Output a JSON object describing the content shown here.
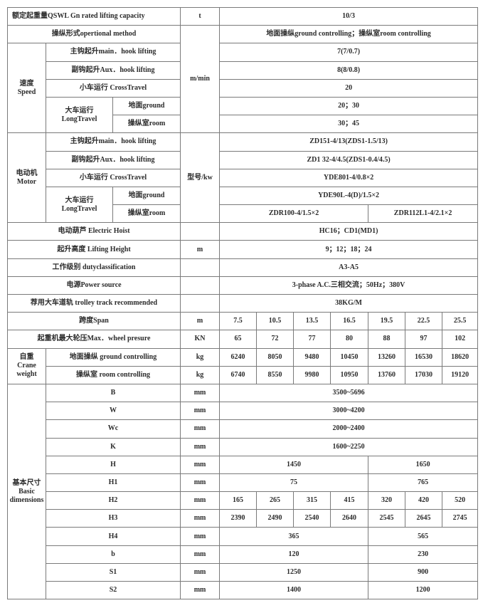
{
  "rated_capacity": {
    "label": "额定起重量QSWL Gn rated lifting capacity",
    "unit": "t",
    "value": "10/3"
  },
  "operation": {
    "label": "操纵形式opertional method",
    "value": "地面操纵ground controlling；操纵室room controlling"
  },
  "speed": {
    "group_cn": "速度",
    "group_en": "Speed",
    "unit": "m/min",
    "main_hook": {
      "label": "主钩起升main．hook lifting",
      "value": "7(7/0.7)"
    },
    "aux_hook": {
      "label": "副钩起升Aux．hook lifting",
      "value": "8(8/0.8)"
    },
    "cross": {
      "label": "小车运行 CrossTravel",
      "value": "20"
    },
    "long_cn": "大车运行",
    "long_en": "LongTravel",
    "ground": {
      "label": "地面ground",
      "value": "20；30"
    },
    "room": {
      "label": "操纵室room",
      "value": "30；45"
    }
  },
  "motor": {
    "group_cn": "电动机",
    "group_en": "Motor",
    "unit": "型号/kw",
    "main_hook": {
      "label": "主钩起升main．hook lifting",
      "value": "ZD151-4/13(ZDS1-1.5/13)"
    },
    "aux_hook": {
      "label": "副钩起升Aux．hook lifting",
      "value": "ZD1 32-4/4.5(ZDS1-0.4/4.5)"
    },
    "cross": {
      "label": "小车运行 CrossTravel",
      "value": "YDE801-4/0.8×2"
    },
    "long_cn": "大车运行",
    "long_en": "LongTravel",
    "ground": {
      "label": "地面ground",
      "value": "YDE90L-4(D)/1.5×2"
    },
    "room": {
      "label": "操纵室room",
      "value_a": "ZDR100-4/1.5×2",
      "value_b": "ZDR112L1-4/2.1×2"
    }
  },
  "hoist": {
    "label": "电动葫芦 Electric Hoist",
    "value": "HC16；CD1(MD1)"
  },
  "lifting_height": {
    "label": "起升高度 Lifting Height",
    "unit": "m",
    "value": "9；12；18；24"
  },
  "duty": {
    "label": "工作级别 dutyclassification",
    "value": "A3-A5"
  },
  "power": {
    "label": "电源Power source",
    "value": "3-phase A.C.三相交流；50Hz；380V"
  },
  "track": {
    "label": "荐用大车道轨 trolley track recommended",
    "value": "38KG/M"
  },
  "span": {
    "label": "跨度Span",
    "unit": "m",
    "values": [
      "7.5",
      "10.5",
      "13.5",
      "16.5",
      "19.5",
      "22.5",
      "25.5"
    ]
  },
  "wheel": {
    "label": "起重机最大轮压Max．wheel presure",
    "unit": "KN",
    "values": [
      "65",
      "72",
      "77",
      "80",
      "88",
      "97",
      "102"
    ]
  },
  "weight": {
    "group_cn": "自重",
    "group_en1": "Crane",
    "group_en2": "weight",
    "ground": {
      "label": "地面操纵 ground controlling",
      "unit": "kg",
      "values": [
        "6240",
        "8050",
        "9480",
        "10450",
        "13260",
        "16530",
        "18620"
      ]
    },
    "room": {
      "label": "操纵室 room controlling",
      "unit": "kg",
      "values": [
        "6740",
        "8550",
        "9980",
        "10950",
        "13760",
        "17030",
        "19120"
      ]
    }
  },
  "dims": {
    "group_cn": "基本尺寸",
    "group_en1": "Basic",
    "group_en2": "dimensions",
    "rows": [
      {
        "label": "B",
        "unit": "mm",
        "value": "3500~5696"
      },
      {
        "label": "W",
        "unit": "mm",
        "value": "3000~4200"
      },
      {
        "label": "Wc",
        "unit": "mm",
        "value": "2000~2400"
      },
      {
        "label": "K",
        "unit": "mm",
        "value": "1600~2250"
      },
      {
        "label": "H",
        "unit": "mm",
        "a": "1450",
        "b": "1650"
      },
      {
        "label": "H1",
        "unit": "mm",
        "a": "75",
        "b": "765"
      },
      {
        "label": "H2",
        "unit": "mm",
        "values": [
          "165",
          "265",
          "315",
          "415",
          "320",
          "420",
          "520"
        ]
      },
      {
        "label": "H3",
        "unit": "mm",
        "values": [
          "2390",
          "2490",
          "2540",
          "2640",
          "2545",
          "2645",
          "2745"
        ]
      },
      {
        "label": "H4",
        "unit": "mm",
        "a": "365",
        "b": "565"
      },
      {
        "label": "b",
        "unit": "mm",
        "a": "120",
        "b": "230"
      },
      {
        "label": "S1",
        "unit": "mm",
        "a": "1250",
        "b": "900"
      },
      {
        "label": "S2",
        "unit": "mm",
        "a": "1400",
        "b": "1200"
      }
    ]
  }
}
